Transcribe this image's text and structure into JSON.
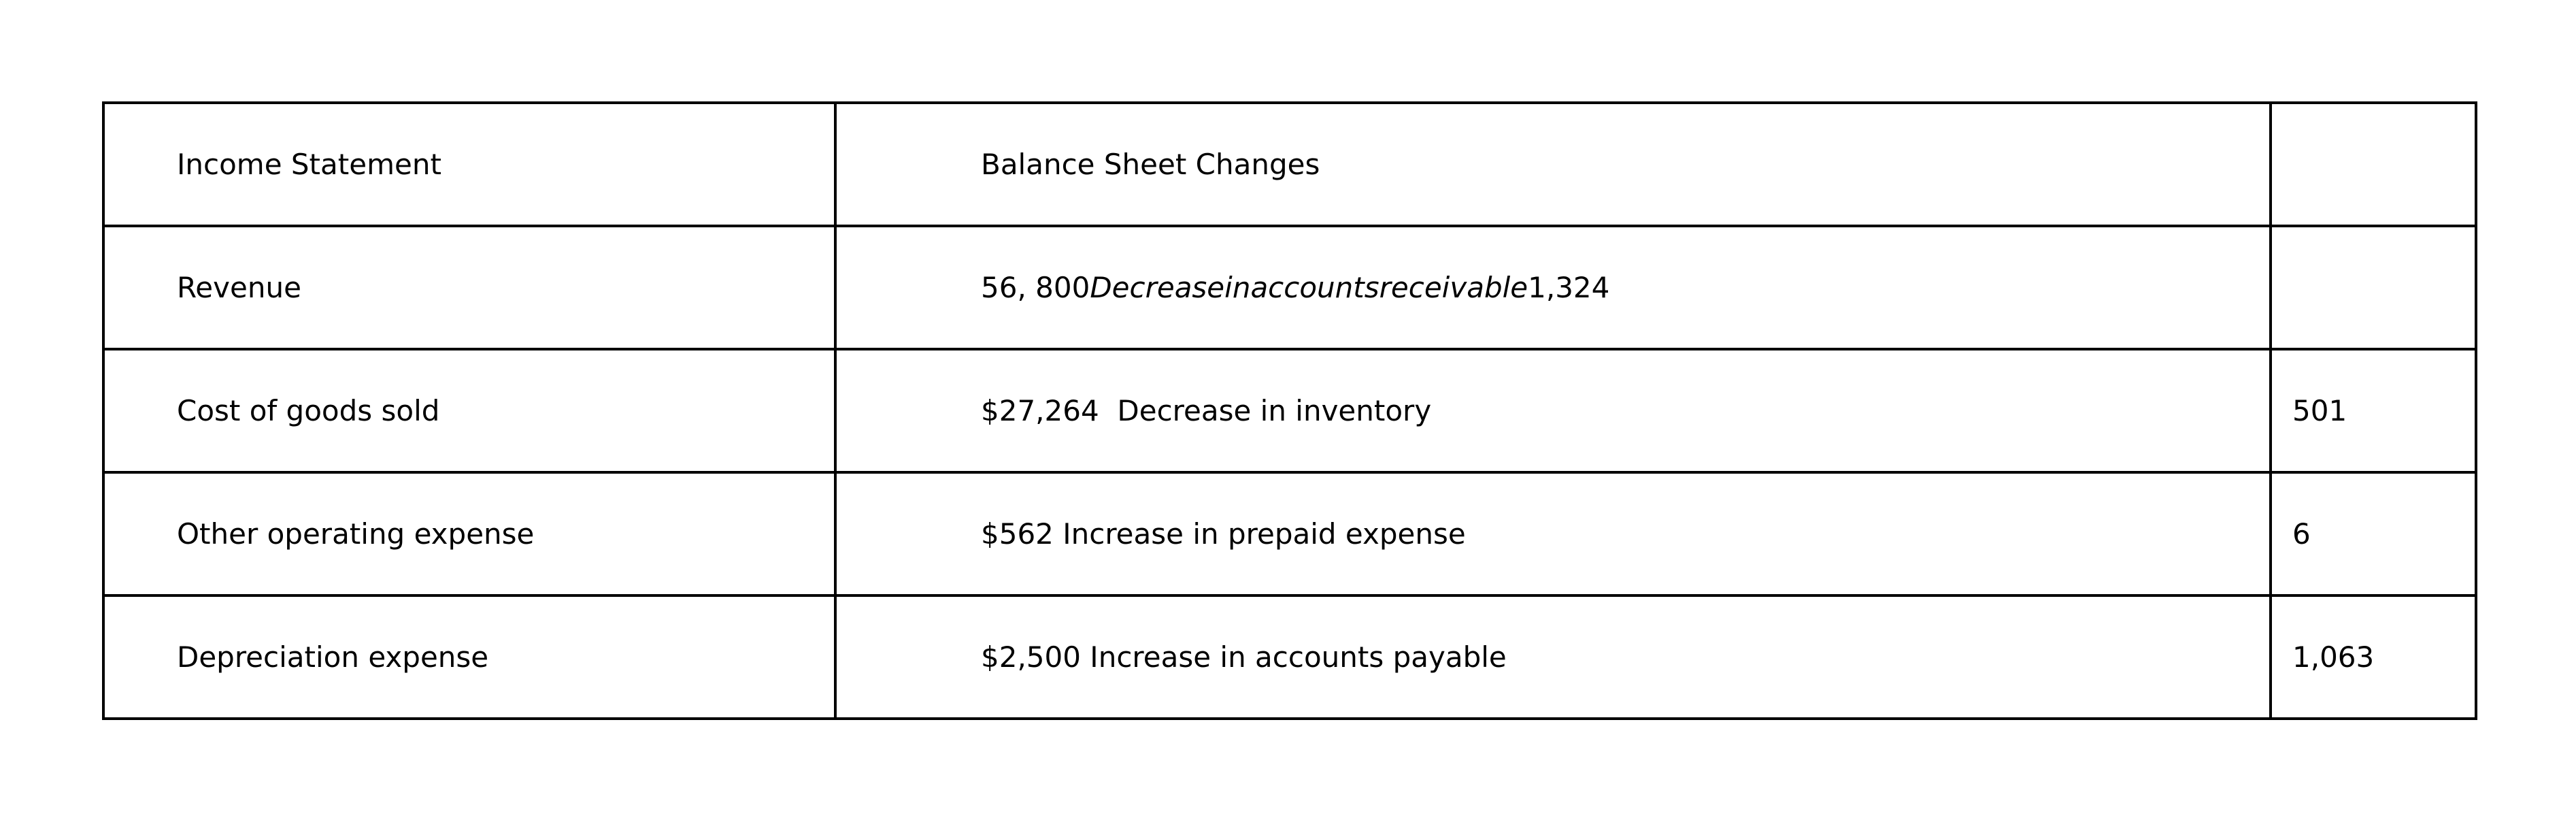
{
  "table": {
    "header": {
      "col1": "Income Statement",
      "col2": "Balance Sheet Changes",
      "col3": ""
    },
    "rows": [
      {
        "col1": "Revenue",
        "col2_prefix": "56, 800",
        "col2_italic": "Decreaseinaccountsreceivable",
        "col2_suffix": "1,324",
        "col3": ""
      },
      {
        "col1": "Cost of goods sold",
        "col2": "$27,264  Decrease in inventory",
        "col3": "501"
      },
      {
        "col1": "Other operating expense",
        "col2": "$562 Increase in prepaid expense",
        "col3": "6"
      },
      {
        "col1": "Depreciation expense",
        "col2": "$2,500 Increase in accounts payable",
        "col3": "1,063"
      }
    ]
  }
}
